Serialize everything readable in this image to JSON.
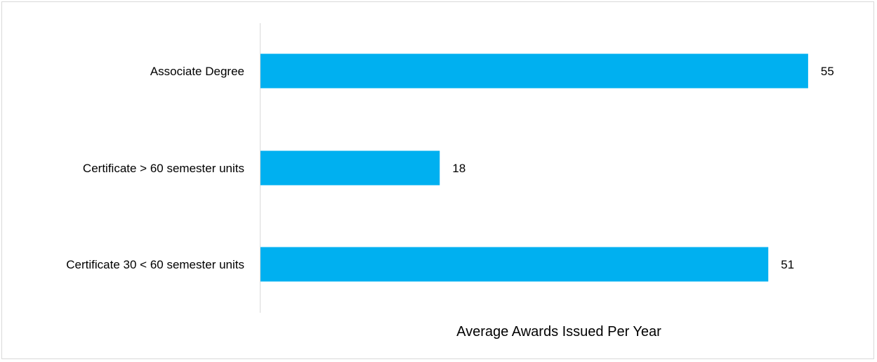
{
  "chart_data": {
    "type": "bar",
    "orientation": "horizontal",
    "categories": [
      "Associate Degree",
      "Certificate > 60 semester units",
      "Certificate 30 < 60 semester units"
    ],
    "values": [
      55,
      18,
      51
    ],
    "title": "",
    "xlabel": "Average Awards Issued Per Year",
    "ylabel": "",
    "xlim": [
      0,
      55
    ],
    "grid": false,
    "legend": "none",
    "data_labels": [
      "55",
      "18",
      "51"
    ],
    "bar_color": "#00B0F0",
    "axis_color": "#d9d9d9"
  }
}
